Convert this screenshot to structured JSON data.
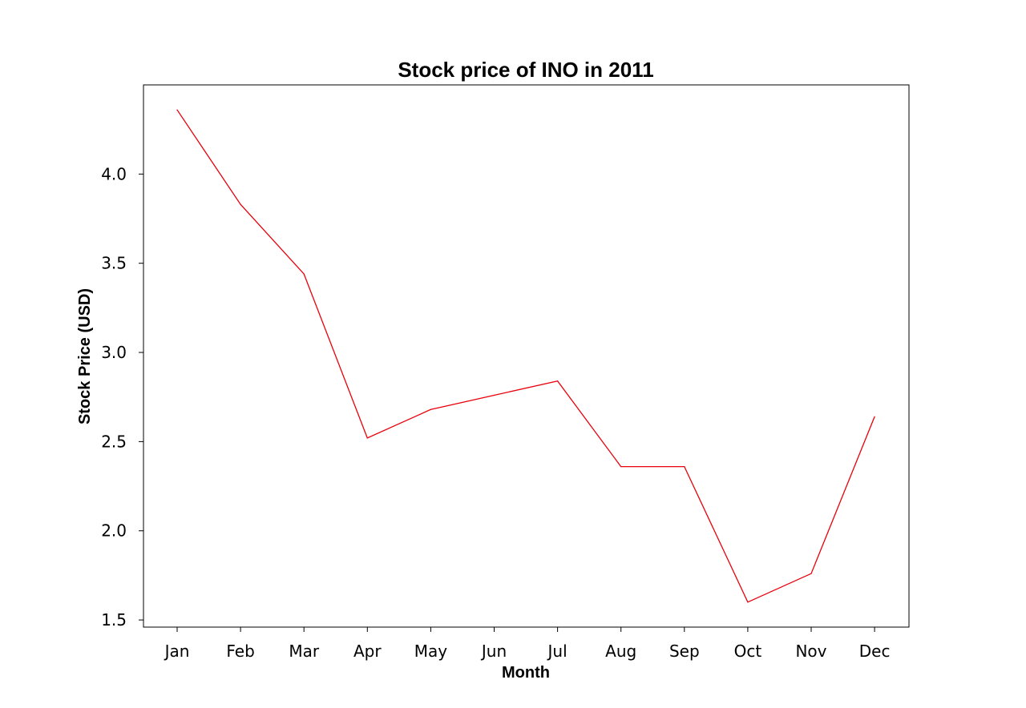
{
  "chart_data": {
    "type": "line",
    "title": "Stock price of INO in 2011",
    "xlabel": "Month",
    "ylabel": "Stock Price (USD)",
    "categories": [
      "Jan",
      "Feb",
      "Mar",
      "Apr",
      "May",
      "Jun",
      "Jul",
      "Aug",
      "Sep",
      "Oct",
      "Nov",
      "Dec"
    ],
    "series": [
      {
        "values": [
          4.36,
          3.83,
          3.44,
          2.52,
          2.68,
          2.76,
          2.84,
          2.36,
          2.36,
          1.6,
          1.76,
          2.64
        ],
        "color": "#e8000b"
      }
    ],
    "ylim": [
      1.46,
      4.5
    ],
    "yticks": [
      1.5,
      2.0,
      2.5,
      3.0,
      3.5,
      4.0
    ],
    "ytick_labels": [
      "1.5",
      "2.0",
      "2.5",
      "3.0",
      "3.5",
      "4.0"
    ],
    "grid": false,
    "legend": "none"
  }
}
